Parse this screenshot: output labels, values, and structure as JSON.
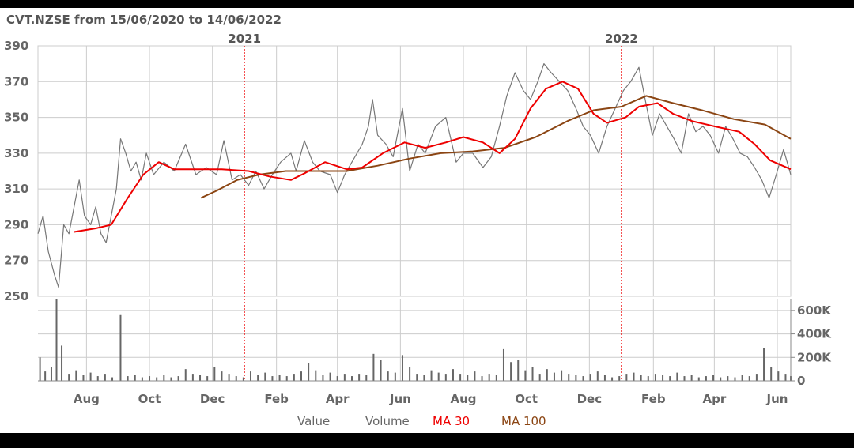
{
  "chart_data": {
    "type": "line",
    "title": "CVT.NZSE from 15/06/2020 to 14/06/2022",
    "date_range": {
      "start": "2020-06-15",
      "end": "2022-06-14"
    },
    "price_axis": {
      "ylim": [
        250,
        390
      ],
      "ticks": [
        "390",
        "370",
        "350",
        "330",
        "310",
        "290",
        "270",
        "250"
      ]
    },
    "volume_axis": {
      "ylim": [
        0,
        700000
      ],
      "ticks": [
        "600K",
        "400K",
        "200K",
        "0"
      ]
    },
    "x_ticks": [
      "Aug",
      "Oct",
      "Dec",
      "Feb",
      "Apr",
      "Jun",
      "Aug",
      "Oct",
      "Dec",
      "Feb",
      "Apr",
      "Jun"
    ],
    "year_markers": [
      {
        "date": "2021-01-01",
        "label": "2021"
      },
      {
        "date": "2022-01-01",
        "label": "2022"
      }
    ],
    "legend": [
      "Value",
      "Volume",
      "MA 30",
      "MA 100"
    ],
    "colors": {
      "value": "#777777",
      "volume": "#666666",
      "ma30": "#ee0000",
      "ma100": "#8b4513",
      "grid": "#cccccc",
      "year_line": "#ee0000"
    },
    "series": [
      {
        "name": "Value",
        "points": [
          [
            "2020-06-15",
            285
          ],
          [
            "2020-06-20",
            295
          ],
          [
            "2020-06-25",
            275
          ],
          [
            "2020-07-01",
            262
          ],
          [
            "2020-07-05",
            255
          ],
          [
            "2020-07-10",
            290
          ],
          [
            "2020-07-15",
            285
          ],
          [
            "2020-07-20",
            300
          ],
          [
            "2020-07-25",
            315
          ],
          [
            "2020-07-30",
            295
          ],
          [
            "2020-08-05",
            290
          ],
          [
            "2020-08-10",
            300
          ],
          [
            "2020-08-15",
            285
          ],
          [
            "2020-08-20",
            280
          ],
          [
            "2020-08-25",
            295
          ],
          [
            "2020-08-30",
            310
          ],
          [
            "2020-09-03",
            338
          ],
          [
            "2020-09-08",
            330
          ],
          [
            "2020-09-13",
            320
          ],
          [
            "2020-09-18",
            325
          ],
          [
            "2020-09-23",
            315
          ],
          [
            "2020-09-28",
            330
          ],
          [
            "2020-10-05",
            318
          ],
          [
            "2020-10-15",
            325
          ],
          [
            "2020-10-25",
            320
          ],
          [
            "2020-11-05",
            335
          ],
          [
            "2020-11-15",
            318
          ],
          [
            "2020-11-25",
            322
          ],
          [
            "2020-12-05",
            318
          ],
          [
            "2020-12-12",
            337
          ],
          [
            "2020-12-20",
            315
          ],
          [
            "2020-12-28",
            318
          ],
          [
            "2021-01-05",
            312
          ],
          [
            "2021-01-12",
            320
          ],
          [
            "2021-01-20",
            310
          ],
          [
            "2021-01-28",
            318
          ],
          [
            "2021-02-05",
            325
          ],
          [
            "2021-02-15",
            330
          ],
          [
            "2021-02-20",
            320
          ],
          [
            "2021-02-28",
            337
          ],
          [
            "2021-03-08",
            325
          ],
          [
            "2021-03-15",
            320
          ],
          [
            "2021-03-25",
            318
          ],
          [
            "2021-04-01",
            308
          ],
          [
            "2021-04-08",
            318
          ],
          [
            "2021-04-15",
            325
          ],
          [
            "2021-04-25",
            335
          ],
          [
            "2021-05-01",
            345
          ],
          [
            "2021-05-05",
            360
          ],
          [
            "2021-05-10",
            340
          ],
          [
            "2021-05-18",
            335
          ],
          [
            "2021-05-25",
            328
          ],
          [
            "2021-06-03",
            355
          ],
          [
            "2021-06-10",
            320
          ],
          [
            "2021-06-18",
            335
          ],
          [
            "2021-06-25",
            330
          ],
          [
            "2021-07-05",
            345
          ],
          [
            "2021-07-15",
            350
          ],
          [
            "2021-07-25",
            325
          ],
          [
            "2021-08-01",
            330
          ],
          [
            "2021-08-10",
            330
          ],
          [
            "2021-08-20",
            322
          ],
          [
            "2021-08-28",
            328
          ],
          [
            "2021-09-05",
            345
          ],
          [
            "2021-09-12",
            362
          ],
          [
            "2021-09-20",
            375
          ],
          [
            "2021-09-28",
            365
          ],
          [
            "2021-10-05",
            360
          ],
          [
            "2021-10-12",
            370
          ],
          [
            "2021-10-18",
            380
          ],
          [
            "2021-10-25",
            375
          ],
          [
            "2021-11-02",
            370
          ],
          [
            "2021-11-10",
            365
          ],
          [
            "2021-11-18",
            355
          ],
          [
            "2021-11-25",
            345
          ],
          [
            "2021-12-02",
            340
          ],
          [
            "2021-12-10",
            330
          ],
          [
            "2021-12-18",
            345
          ],
          [
            "2021-12-26",
            355
          ],
          [
            "2022-01-03",
            365
          ],
          [
            "2022-01-10",
            370
          ],
          [
            "2022-01-18",
            378
          ],
          [
            "2022-01-24",
            360
          ],
          [
            "2022-01-31",
            340
          ],
          [
            "2022-02-07",
            352
          ],
          [
            "2022-02-14",
            345
          ],
          [
            "2022-02-21",
            338
          ],
          [
            "2022-02-28",
            330
          ],
          [
            "2022-03-07",
            352
          ],
          [
            "2022-03-14",
            342
          ],
          [
            "2022-03-21",
            345
          ],
          [
            "2022-03-28",
            340
          ],
          [
            "2022-04-05",
            330
          ],
          [
            "2022-04-12",
            345
          ],
          [
            "2022-04-19",
            338
          ],
          [
            "2022-04-26",
            330
          ],
          [
            "2022-05-03",
            328
          ],
          [
            "2022-05-10",
            322
          ],
          [
            "2022-05-17",
            315
          ],
          [
            "2022-05-24",
            305
          ],
          [
            "2022-05-31",
            318
          ],
          [
            "2022-06-07",
            332
          ],
          [
            "2022-06-14",
            318
          ]
        ]
      },
      {
        "name": "MA 30",
        "points": [
          [
            "2020-07-20",
            286
          ],
          [
            "2020-08-10",
            288
          ],
          [
            "2020-08-25",
            290
          ],
          [
            "2020-09-10",
            305
          ],
          [
            "2020-09-25",
            318
          ],
          [
            "2020-10-10",
            325
          ],
          [
            "2020-10-25",
            321
          ],
          [
            "2020-11-15",
            321
          ],
          [
            "2020-12-10",
            321
          ],
          [
            "2021-01-05",
            320
          ],
          [
            "2021-01-25",
            317
          ],
          [
            "2021-02-15",
            315
          ],
          [
            "2021-03-01",
            319
          ],
          [
            "2021-03-20",
            325
          ],
          [
            "2021-04-10",
            321
          ],
          [
            "2021-04-25",
            322
          ],
          [
            "2021-05-15",
            330
          ],
          [
            "2021-06-05",
            336
          ],
          [
            "2021-06-25",
            333
          ],
          [
            "2021-07-15",
            336
          ],
          [
            "2021-08-01",
            339
          ],
          [
            "2021-08-20",
            336
          ],
          [
            "2021-09-05",
            330
          ],
          [
            "2021-09-20",
            338
          ],
          [
            "2021-10-05",
            355
          ],
          [
            "2021-10-20",
            366
          ],
          [
            "2021-11-05",
            370
          ],
          [
            "2021-11-20",
            366
          ],
          [
            "2021-12-05",
            352
          ],
          [
            "2021-12-18",
            347
          ],
          [
            "2022-01-05",
            350
          ],
          [
            "2022-01-18",
            356
          ],
          [
            "2022-02-05",
            358
          ],
          [
            "2022-02-20",
            352
          ],
          [
            "2022-03-10",
            348
          ],
          [
            "2022-04-01",
            345
          ],
          [
            "2022-04-25",
            342
          ],
          [
            "2022-05-10",
            335
          ],
          [
            "2022-05-25",
            326
          ],
          [
            "2022-06-14",
            321
          ]
        ]
      },
      {
        "name": "MA 100",
        "points": [
          [
            "2020-11-20",
            305
          ],
          [
            "2020-12-05",
            309
          ],
          [
            "2020-12-25",
            315
          ],
          [
            "2021-01-15",
            318
          ],
          [
            "2021-02-10",
            320
          ],
          [
            "2021-03-10",
            320
          ],
          [
            "2021-04-10",
            320
          ],
          [
            "2021-05-10",
            323
          ],
          [
            "2021-06-10",
            327
          ],
          [
            "2021-07-10",
            330
          ],
          [
            "2021-08-10",
            331
          ],
          [
            "2021-09-10",
            333
          ],
          [
            "2021-10-10",
            339
          ],
          [
            "2021-11-10",
            348
          ],
          [
            "2021-12-05",
            354
          ],
          [
            "2022-01-01",
            356
          ],
          [
            "2022-01-25",
            362
          ],
          [
            "2022-02-20",
            358
          ],
          [
            "2022-03-20",
            354
          ],
          [
            "2022-04-20",
            349
          ],
          [
            "2022-05-20",
            346
          ],
          [
            "2022-06-14",
            338
          ]
        ]
      },
      {
        "name": "Volume",
        "points": [
          [
            "2020-06-17",
            200000
          ],
          [
            "2020-06-22",
            80000
          ],
          [
            "2020-06-28",
            120000
          ],
          [
            "2020-07-03",
            700000
          ],
          [
            "2020-07-08",
            300000
          ],
          [
            "2020-07-15",
            60000
          ],
          [
            "2020-07-22",
            90000
          ],
          [
            "2020-07-29",
            50000
          ],
          [
            "2020-08-05",
            70000
          ],
          [
            "2020-08-12",
            40000
          ],
          [
            "2020-08-19",
            60000
          ],
          [
            "2020-08-26",
            30000
          ],
          [
            "2020-09-03",
            560000
          ],
          [
            "2020-09-10",
            40000
          ],
          [
            "2020-09-17",
            50000
          ],
          [
            "2020-09-24",
            30000
          ],
          [
            "2020-10-01",
            40000
          ],
          [
            "2020-10-08",
            30000
          ],
          [
            "2020-10-15",
            50000
          ],
          [
            "2020-10-22",
            30000
          ],
          [
            "2020-10-29",
            40000
          ],
          [
            "2020-11-05",
            100000
          ],
          [
            "2020-11-12",
            60000
          ],
          [
            "2020-11-19",
            50000
          ],
          [
            "2020-11-26",
            40000
          ],
          [
            "2020-12-03",
            120000
          ],
          [
            "2020-12-10",
            80000
          ],
          [
            "2020-12-17",
            60000
          ],
          [
            "2020-12-24",
            40000
          ],
          [
            "2020-12-31",
            30000
          ],
          [
            "2021-01-07",
            80000
          ],
          [
            "2021-01-14",
            50000
          ],
          [
            "2021-01-21",
            70000
          ],
          [
            "2021-01-28",
            40000
          ],
          [
            "2021-02-04",
            50000
          ],
          [
            "2021-02-11",
            40000
          ],
          [
            "2021-02-18",
            60000
          ],
          [
            "2021-02-25",
            80000
          ],
          [
            "2021-03-04",
            150000
          ],
          [
            "2021-03-11",
            90000
          ],
          [
            "2021-03-18",
            50000
          ],
          [
            "2021-03-25",
            70000
          ],
          [
            "2021-04-01",
            40000
          ],
          [
            "2021-04-08",
            60000
          ],
          [
            "2021-04-15",
            40000
          ],
          [
            "2021-04-22",
            60000
          ],
          [
            "2021-04-29",
            50000
          ],
          [
            "2021-05-06",
            230000
          ],
          [
            "2021-05-13",
            180000
          ],
          [
            "2021-05-20",
            80000
          ],
          [
            "2021-05-27",
            70000
          ],
          [
            "2021-06-03",
            220000
          ],
          [
            "2021-06-10",
            120000
          ],
          [
            "2021-06-17",
            60000
          ],
          [
            "2021-06-24",
            50000
          ],
          [
            "2021-07-01",
            90000
          ],
          [
            "2021-07-08",
            70000
          ],
          [
            "2021-07-15",
            60000
          ],
          [
            "2021-07-22",
            100000
          ],
          [
            "2021-07-29",
            60000
          ],
          [
            "2021-08-05",
            50000
          ],
          [
            "2021-08-12",
            80000
          ],
          [
            "2021-08-19",
            40000
          ],
          [
            "2021-08-26",
            60000
          ],
          [
            "2021-09-02",
            50000
          ],
          [
            "2021-09-09",
            270000
          ],
          [
            "2021-09-16",
            160000
          ],
          [
            "2021-09-23",
            180000
          ],
          [
            "2021-09-30",
            90000
          ],
          [
            "2021-10-07",
            120000
          ],
          [
            "2021-10-14",
            60000
          ],
          [
            "2021-10-21",
            100000
          ],
          [
            "2021-10-28",
            70000
          ],
          [
            "2021-11-04",
            90000
          ],
          [
            "2021-11-11",
            60000
          ],
          [
            "2021-11-18",
            50000
          ],
          [
            "2021-11-25",
            40000
          ],
          [
            "2021-12-02",
            60000
          ],
          [
            "2021-12-09",
            80000
          ],
          [
            "2021-12-16",
            50000
          ],
          [
            "2021-12-23",
            30000
          ],
          [
            "2021-12-30",
            40000
          ],
          [
            "2022-01-06",
            60000
          ],
          [
            "2022-01-13",
            70000
          ],
          [
            "2022-01-20",
            50000
          ],
          [
            "2022-01-27",
            40000
          ],
          [
            "2022-02-03",
            60000
          ],
          [
            "2022-02-10",
            50000
          ],
          [
            "2022-02-17",
            40000
          ],
          [
            "2022-02-24",
            70000
          ],
          [
            "2022-03-03",
            40000
          ],
          [
            "2022-03-10",
            50000
          ],
          [
            "2022-03-17",
            30000
          ],
          [
            "2022-03-24",
            40000
          ],
          [
            "2022-03-31",
            50000
          ],
          [
            "2022-04-07",
            30000
          ],
          [
            "2022-04-14",
            40000
          ],
          [
            "2022-04-21",
            30000
          ],
          [
            "2022-04-28",
            50000
          ],
          [
            "2022-05-05",
            40000
          ],
          [
            "2022-05-12",
            60000
          ],
          [
            "2022-05-19",
            280000
          ],
          [
            "2022-05-26",
            120000
          ],
          [
            "2022-06-02",
            80000
          ],
          [
            "2022-06-09",
            60000
          ],
          [
            "2022-06-14",
            40000
          ]
        ]
      }
    ]
  }
}
